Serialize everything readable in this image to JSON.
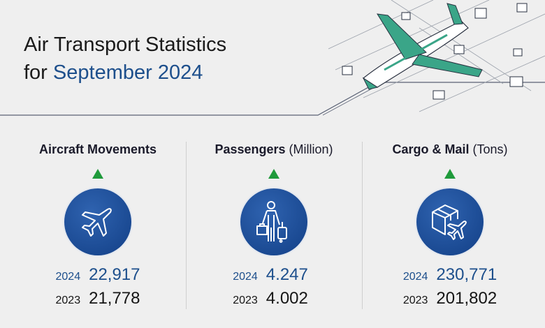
{
  "title": {
    "line1": "Air Transport Statistics",
    "line2_prefix": "for ",
    "line2_accent": "September 2024"
  },
  "accent_color": "#1d4f8c",
  "trend_color": "#1f9a3b",
  "stats": [
    {
      "heading": "Aircraft Movements",
      "unit": "",
      "icon": "airplane-icon",
      "trend": "up",
      "year_current": "2024",
      "value_current": "22,917",
      "year_previous": "2023",
      "value_previous": "21,778"
    },
    {
      "heading": "Passengers",
      "unit": "(Million)",
      "icon": "traveler-luggage-icon",
      "trend": "up",
      "year_current": "2024",
      "value_current": "4.247",
      "year_previous": "2023",
      "value_previous": "4.002"
    },
    {
      "heading": "Cargo & Mail",
      "unit": "(Tons)",
      "icon": "cargo-box-plane-icon",
      "trend": "up",
      "year_current": "2024",
      "value_current": "230,771",
      "year_previous": "2023",
      "value_previous": "201,802"
    }
  ]
}
